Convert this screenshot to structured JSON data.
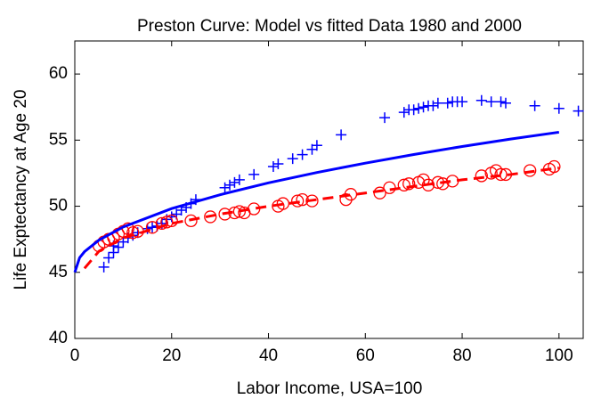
{
  "chart_data": {
    "type": "scatter",
    "title": "Preston Curve: Model vs fitted Data 1980 and 2000",
    "x_label": "Labor Income, USA=100",
    "y_label": "Life Exptectancy at Age 20",
    "xlim": [
      0,
      105
    ],
    "ylim": [
      40,
      62.5
    ],
    "xticks": [
      0,
      20,
      40,
      60,
      80,
      100
    ],
    "yticks": [
      40,
      45,
      50,
      55,
      60
    ],
    "series": [
      {
        "type": "scatter",
        "marker": "+",
        "color": "#0000ff",
        "x": [
          6,
          7,
          8,
          8,
          9,
          10,
          11,
          12,
          13,
          15,
          16,
          17,
          18,
          19,
          20,
          21,
          22,
          23,
          24,
          25,
          31,
          32,
          33,
          34,
          37,
          41,
          42,
          45,
          47,
          49,
          50,
          55,
          64,
          68,
          69,
          70,
          71,
          72,
          73,
          74,
          75,
          77,
          78,
          79,
          80,
          84,
          86,
          88,
          89,
          95,
          100,
          104
        ],
        "values": [
          45.4,
          46.1,
          46.5,
          47.0,
          46.9,
          47.3,
          47.6,
          47.8,
          48.0,
          48.3,
          48.4,
          48.5,
          48.7,
          49.0,
          49.2,
          49.4,
          49.7,
          49.9,
          50.2,
          50.5,
          51.4,
          51.6,
          51.8,
          52.0,
          52.4,
          53.0,
          53.2,
          53.6,
          53.9,
          54.3,
          54.6,
          55.4,
          56.7,
          57.1,
          57.3,
          57.3,
          57.4,
          57.5,
          57.6,
          57.6,
          57.8,
          57.8,
          57.9,
          57.9,
          57.9,
          58.0,
          57.9,
          57.9,
          57.8,
          57.6,
          57.4,
          57.2
        ]
      },
      {
        "type": "scatter",
        "marker": "o",
        "color": "#ff0000",
        "x": [
          5,
          6,
          7,
          8,
          9,
          10,
          11,
          12,
          13,
          16,
          18,
          19,
          20,
          24,
          28,
          31,
          33,
          34,
          35,
          37,
          42,
          43,
          46,
          47,
          49,
          56,
          57,
          63,
          65,
          68,
          69,
          71,
          72,
          73,
          75,
          76,
          78,
          84,
          86,
          87,
          88,
          89,
          94,
          98,
          99
        ],
        "values": [
          47.0,
          47.3,
          47.5,
          47.6,
          47.9,
          48.1,
          48.3,
          48.0,
          48.1,
          48.4,
          48.7,
          48.8,
          48.9,
          48.9,
          49.2,
          49.4,
          49.5,
          49.6,
          49.5,
          49.8,
          50.0,
          50.2,
          50.4,
          50.5,
          50.4,
          50.5,
          50.9,
          51.0,
          51.4,
          51.6,
          51.7,
          51.8,
          52.0,
          51.6,
          51.8,
          51.7,
          51.9,
          52.3,
          52.5,
          52.7,
          52.4,
          52.4,
          52.7,
          52.8,
          53.0
        ]
      },
      {
        "type": "line",
        "dashed": false,
        "color": "#0000ff",
        "x": [
          0,
          1,
          2,
          5,
          10,
          20,
          30,
          40,
          50,
          60,
          70,
          80,
          90,
          100
        ],
        "values": [
          45,
          46.11,
          46.56,
          47.44,
          48.43,
          49.82,
          50.87,
          51.77,
          52.55,
          53.26,
          53.91,
          54.52,
          55.08,
          55.6
        ]
      },
      {
        "type": "line",
        "dashed": true,
        "color": "#ff0000",
        "x": [
          2,
          5,
          10,
          20,
          30,
          40,
          50,
          60,
          70,
          80,
          90,
          100
        ],
        "values": [
          45.3,
          46.6,
          47.6,
          48.7,
          49.4,
          50.0,
          50.5,
          51.0,
          51.5,
          52.0,
          52.4,
          52.9
        ]
      }
    ]
  }
}
